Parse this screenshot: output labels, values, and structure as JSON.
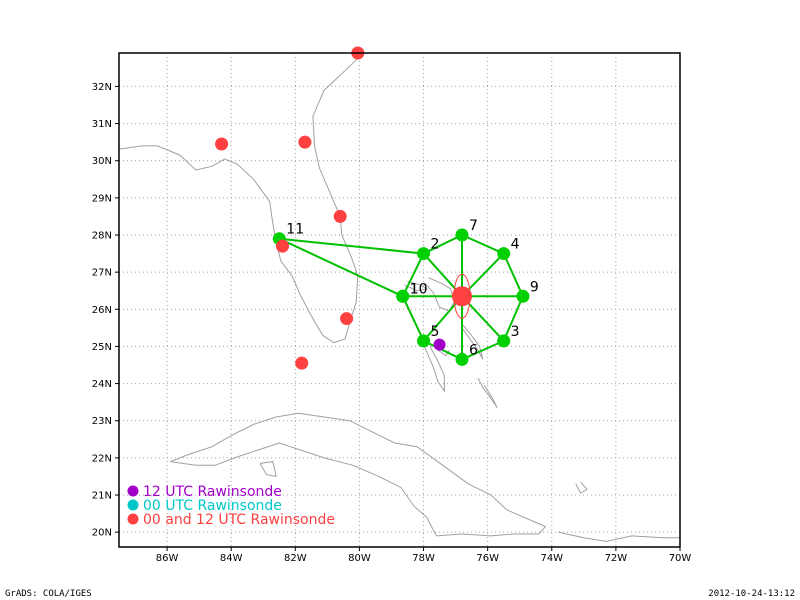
{
  "map": {
    "lon_range": [
      -87.5,
      -70.0
    ],
    "lat_range": [
      19.6,
      32.9
    ],
    "lon_ticks": [
      -86,
      -84,
      -82,
      -80,
      -78,
      -76,
      -74,
      -72,
      -70
    ],
    "lat_ticks": [
      20,
      21,
      22,
      23,
      24,
      25,
      26,
      27,
      28,
      29,
      30,
      31,
      32
    ],
    "lon_tick_labels": [
      "86W",
      "84W",
      "82W",
      "80W",
      "78W",
      "76W",
      "74W",
      "72W",
      "70W"
    ],
    "lat_tick_labels": [
      "20N",
      "21N",
      "22N",
      "23N",
      "24N",
      "25N",
      "26N",
      "27N",
      "28N",
      "29N",
      "30N",
      "31N",
      "32N"
    ],
    "grid": true,
    "colors": {
      "coast": "#a0a0a0",
      "grid": "#a0a0a0",
      "frame": "#000000"
    }
  },
  "center": {
    "lon": -76.8,
    "lat": 26.35,
    "color": "#ff4040"
  },
  "points": [
    {
      "label": "2",
      "lon": -78.0,
      "lat": 27.5
    },
    {
      "label": "3",
      "lon": -75.5,
      "lat": 25.15
    },
    {
      "label": "4",
      "lon": -75.5,
      "lat": 27.5
    },
    {
      "label": "5",
      "lon": -78.0,
      "lat": 25.15
    },
    {
      "label": "6",
      "lon": -76.8,
      "lat": 24.65
    },
    {
      "label": "7",
      "lon": -76.8,
      "lat": 28.0
    },
    {
      "label": "9",
      "lon": -74.9,
      "lat": 26.35
    },
    {
      "label": "10",
      "lon": -78.65,
      "lat": 26.35
    },
    {
      "label": "1",
      "lon": -78.65,
      "lat": 26.35
    },
    {
      "label": "11",
      "lon": -82.5,
      "lat": 27.9
    }
  ],
  "point_color": "#00d000",
  "line_color": "#00c000",
  "segments": [
    [
      -76.8,
      26.35,
      -78.0,
      27.5
    ],
    [
      -76.8,
      26.35,
      -75.5,
      25.15
    ],
    [
      -76.8,
      26.35,
      -75.5,
      27.5
    ],
    [
      -76.8,
      26.35,
      -78.0,
      25.15
    ],
    [
      -76.8,
      26.35,
      -76.8,
      24.65
    ],
    [
      -76.8,
      26.35,
      -76.8,
      28.0
    ],
    [
      -76.8,
      26.35,
      -74.9,
      26.35
    ],
    [
      -76.8,
      26.35,
      -78.65,
      26.35
    ],
    [
      -78.0,
      27.5,
      -76.8,
      28.0
    ],
    [
      -76.8,
      28.0,
      -75.5,
      27.5
    ],
    [
      -75.5,
      27.5,
      -74.9,
      26.35
    ],
    [
      -74.9,
      26.35,
      -75.5,
      25.15
    ],
    [
      -75.5,
      25.15,
      -76.8,
      24.65
    ],
    [
      -76.8,
      24.65,
      -78.0,
      25.15
    ],
    [
      -78.0,
      25.15,
      -78.65,
      26.35
    ],
    [
      -78.65,
      26.35,
      -78.0,
      27.5
    ],
    [
      -82.5,
      27.9,
      -78.0,
      27.5
    ],
    [
      -82.5,
      27.9,
      -78.65,
      26.35
    ]
  ],
  "rawinsonde_00_12": [
    {
      "lon": -80.05,
      "lat": 32.9
    },
    {
      "lon": -84.3,
      "lat": 30.45
    },
    {
      "lon": -81.7,
      "lat": 30.5
    },
    {
      "lon": -80.6,
      "lat": 28.5
    },
    {
      "lon": -82.4,
      "lat": 27.7
    },
    {
      "lon": -80.4,
      "lat": 25.75
    },
    {
      "lon": -81.8,
      "lat": 24.55
    }
  ],
  "rawinsonde_12": [
    {
      "lon": -77.5,
      "lat": 25.05
    }
  ],
  "legend": [
    {
      "text": "12 UTC Rawinsonde",
      "color": "#a000c8"
    },
    {
      "text": "00 UTC Rawinsonde",
      "color": "#00c8c8"
    },
    {
      "text": "00 and 12 UTC Rawinsonde",
      "color": "#ff4040"
    }
  ],
  "footer": {
    "left": "GrADS: COLA/IGES",
    "right": "2012-10-24-13:12"
  }
}
